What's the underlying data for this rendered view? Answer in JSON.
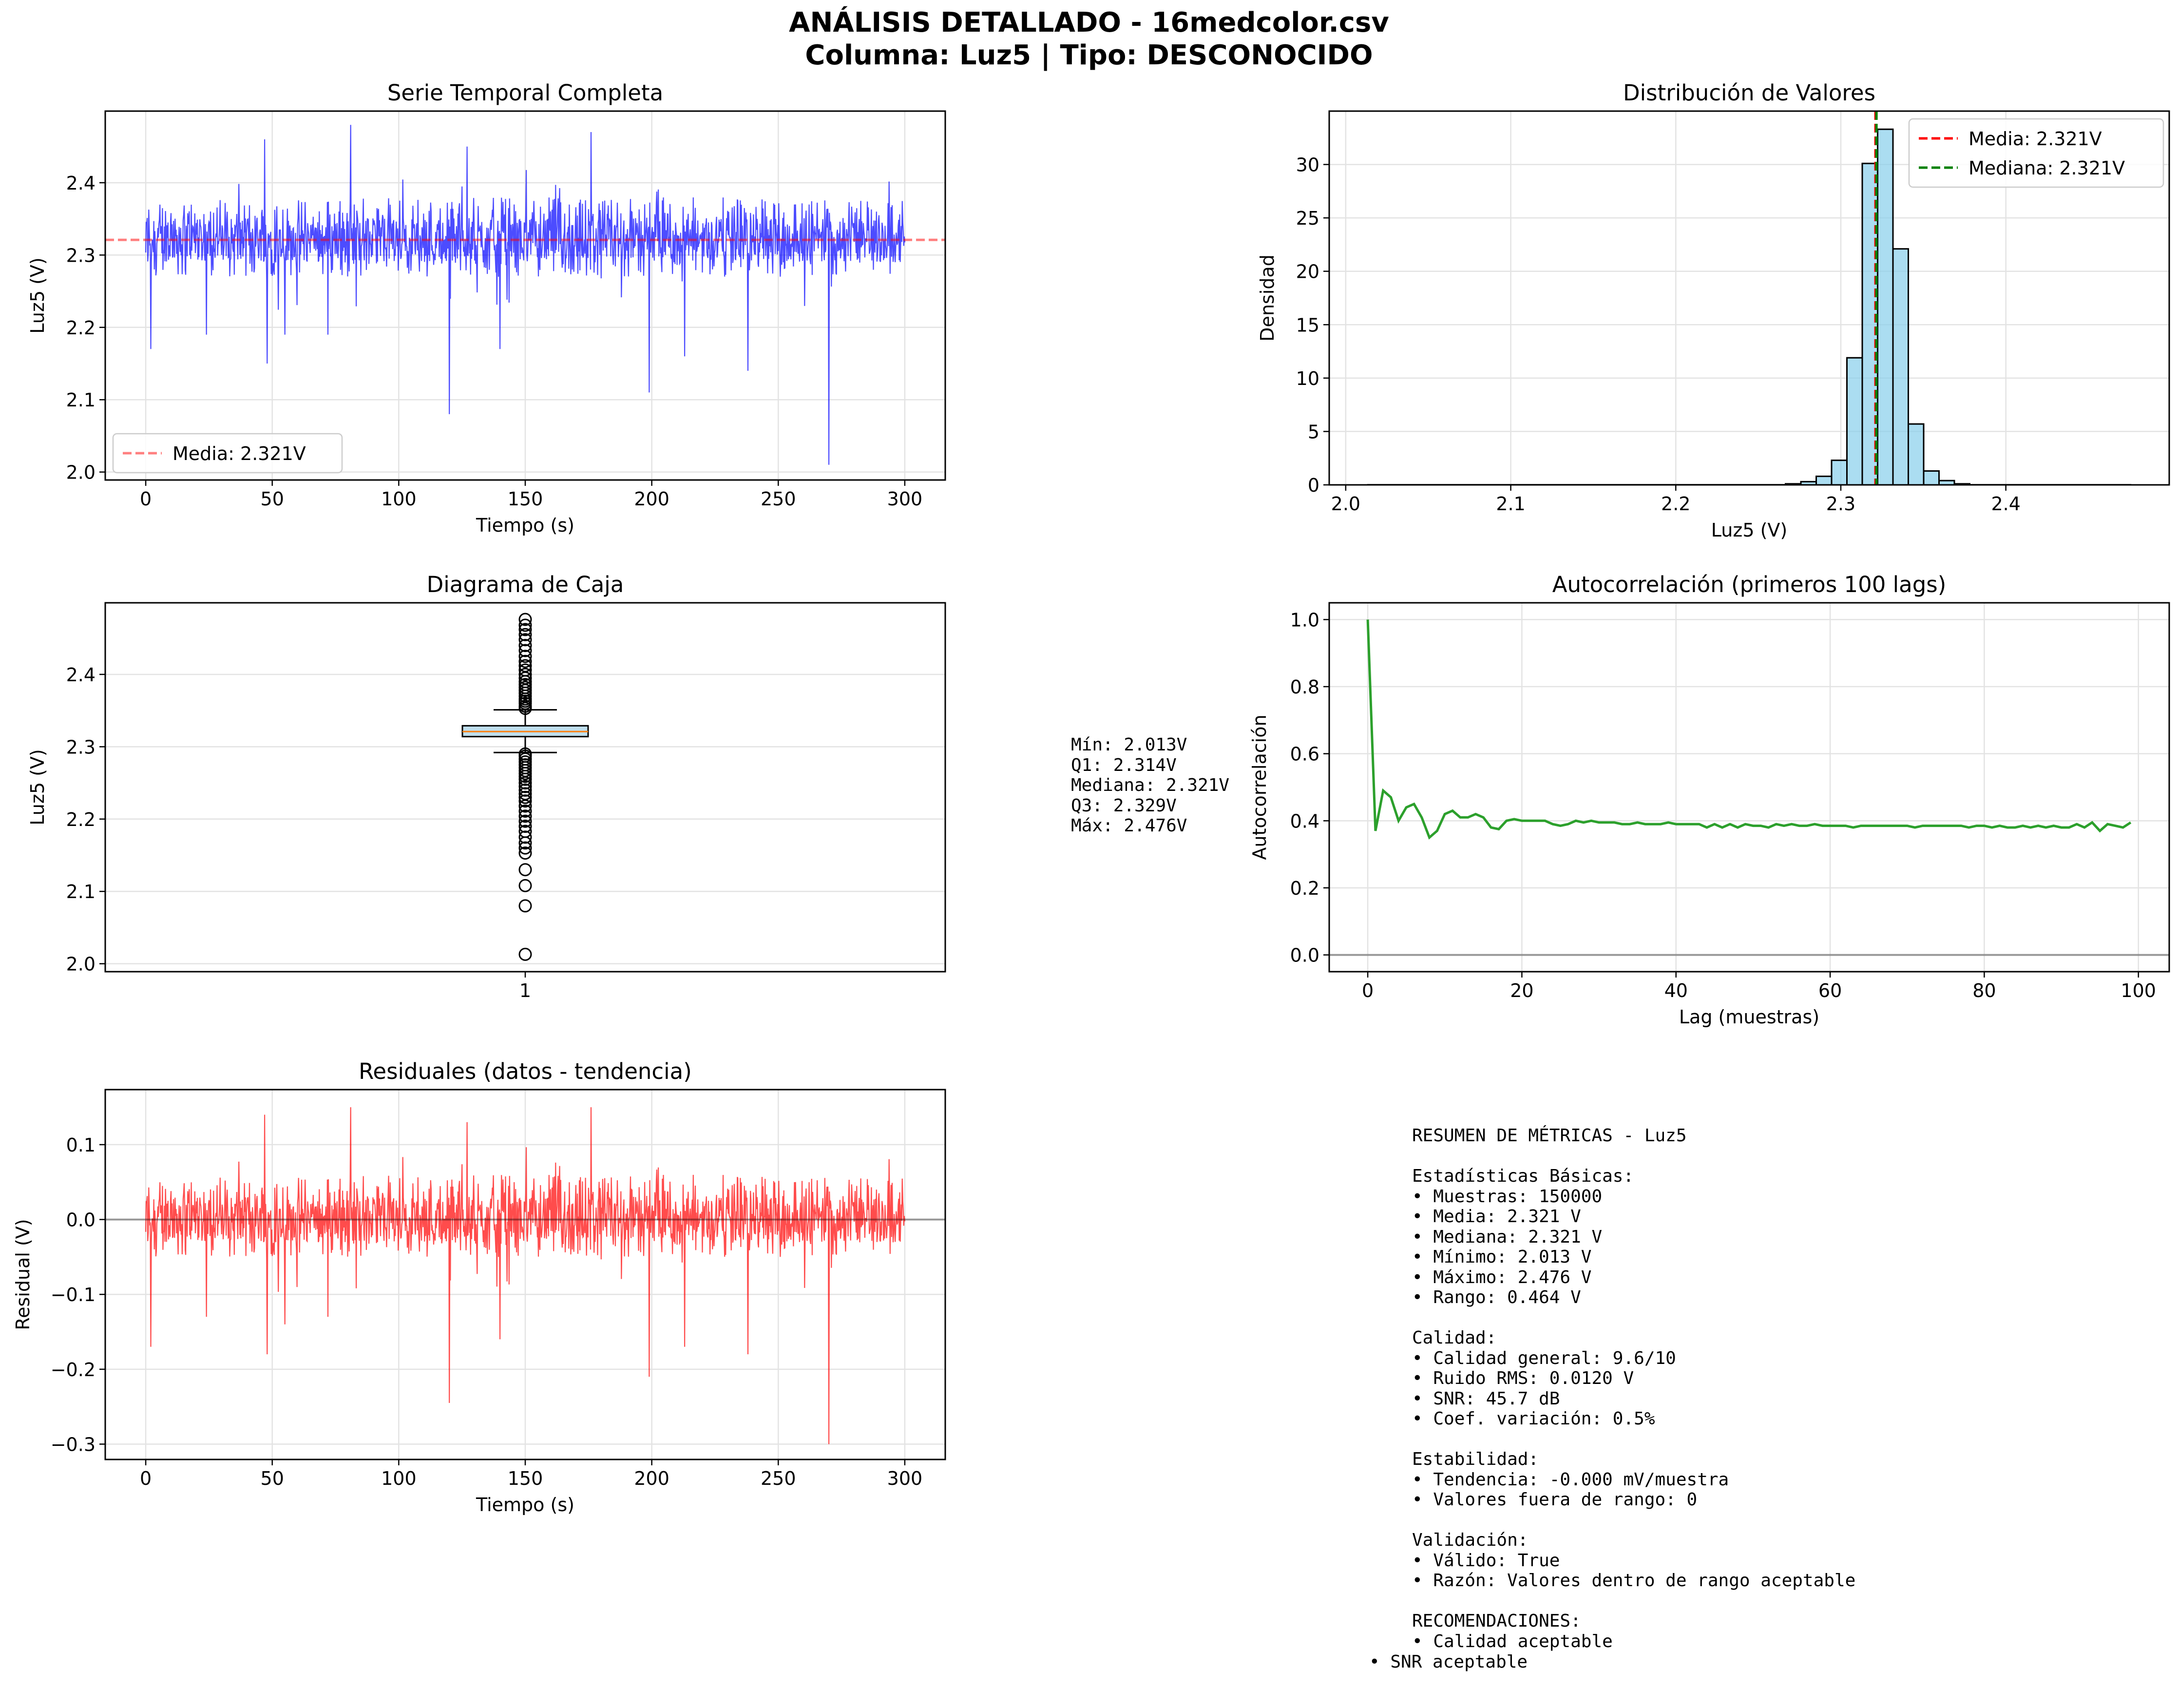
{
  "figure": {
    "title_line1": "ANÁLISIS DETALLADO - 16medcolor.csv",
    "title_line2": "Columna: Luz5 | Tipo: DESCONOCIDO"
  },
  "box_stats_text": [
    "Mín: 2.013V",
    "Q1: 2.314V",
    "Mediana: 2.321V",
    "Q3: 2.329V",
    "Máx: 2.476V"
  ],
  "summary_text": [
    "RESUMEN DE MÉTRICAS - Luz5",
    "",
    "Estadísticas Básicas:",
    "• Muestras: 150000",
    "• Media: 2.321 V",
    "• Mediana: 2.321 V",
    "• Mínimo: 2.013 V",
    "• Máximo: 2.476 V",
    "• Rango: 0.464 V",
    "",
    "Calidad:",
    "• Calidad general: 9.6/10",
    "• Ruido RMS: 0.0120 V",
    "• SNR: 45.7 dB",
    "• Coef. variación: 0.5%",
    "",
    "Estabilidad:",
    "• Tendencia: -0.000 mV/muestra",
    "• Valores fuera de rango: 0",
    "",
    "Validación:",
    "• Válido: True",
    "• Razón: Valores dentro de rango aceptable",
    "",
    "RECOMENDACIONES:",
    "• Calidad aceptable"
  ],
  "summary_last_line": "• SNR aceptable",
  "chart_data": [
    {
      "type": "line",
      "title": "Serie Temporal Completa",
      "xlabel": "Tiempo (s)",
      "ylabel": "Luz5 (V)",
      "xlim": [
        -16,
        316
      ],
      "ylim": [
        1.989,
        2.499
      ],
      "xticks": [
        0,
        50,
        100,
        150,
        200,
        250,
        300
      ],
      "yticks": [
        2.0,
        2.1,
        2.2,
        2.3,
        2.4
      ],
      "ytick_labels": [
        "2.0",
        "2.1",
        "2.2",
        "2.3",
        "2.4"
      ],
      "grid": true,
      "legend": "lower-left",
      "series": [
        {
          "name": "Luz5",
          "color": "#0000ff",
          "mean": 2.321,
          "noise_band": [
            2.27,
            2.38
          ]
        }
      ],
      "spikes": [
        [
          2,
          2.17
        ],
        [
          24,
          2.19
        ],
        [
          47,
          2.46
        ],
        [
          48,
          2.15
        ],
        [
          55,
          2.19
        ],
        [
          72,
          2.19
        ],
        [
          81,
          2.48
        ],
        [
          120,
          2.08
        ],
        [
          127,
          2.45
        ],
        [
          140,
          2.17
        ],
        [
          176,
          2.47
        ],
        [
          199,
          2.11
        ],
        [
          213,
          2.16
        ],
        [
          238,
          2.14
        ],
        [
          270,
          2.01
        ]
      ],
      "mean_line": {
        "value": 2.321,
        "label": "Media: 2.321V",
        "color": "#ff0000"
      }
    },
    {
      "type": "bar",
      "title": "Distribución de Valores",
      "xlabel": "Luz5 (V)",
      "ylabel": "Densidad",
      "xlim": [
        1.99,
        2.499
      ],
      "ylim": [
        0,
        35
      ],
      "xticks": [
        2.0,
        2.1,
        2.2,
        2.3,
        2.4
      ],
      "xtick_labels": [
        "2.0",
        "2.1",
        "2.2",
        "2.3",
        "2.4"
      ],
      "yticks": [
        0,
        5,
        10,
        15,
        20,
        25,
        30
      ],
      "grid": true,
      "legend": "top-right",
      "bin_edges": [
        2.2665,
        2.2758,
        2.2851,
        2.2944,
        2.3037,
        2.313,
        2.3223,
        2.3316,
        2.3409,
        2.3502,
        2.3595,
        2.3688,
        2.3781
      ],
      "values": [
        0.1,
        0.3,
        0.8,
        2.3,
        11.9,
        30.1,
        33.3,
        22.1,
        5.7,
        1.3,
        0.4,
        0.1
      ],
      "bar_color": "#87ceeb",
      "mean_line": {
        "value": 2.321,
        "label": "Media: 2.321V",
        "color": "#ff0000"
      },
      "median_line": {
        "value": 2.321,
        "label": "Mediana: 2.321V",
        "color": "#008000"
      }
    },
    {
      "type": "box",
      "title": "Diagrama de Caja",
      "ylabel": "Luz5 (V)",
      "xticks": [
        1
      ],
      "ylim": [
        1.989,
        2.499
      ],
      "yticks": [
        2.0,
        2.1,
        2.2,
        2.3,
        2.4
      ],
      "ytick_labels": [
        "2.0",
        "2.1",
        "2.2",
        "2.3",
        "2.4"
      ],
      "grid": true,
      "min": 2.013,
      "q1": 2.314,
      "median": 2.321,
      "q3": 2.329,
      "max": 2.476,
      "whisker_low": 2.292,
      "whisker_high": 2.351,
      "outliers_high": [
        2.353,
        2.356,
        2.36,
        2.363,
        2.366,
        2.37,
        2.374,
        2.378,
        2.382,
        2.386,
        2.39,
        2.395,
        2.4,
        2.406,
        2.412,
        2.418,
        2.425,
        2.433,
        2.44,
        2.448,
        2.455,
        2.462,
        2.468,
        2.476
      ],
      "outliers_low": [
        2.29,
        2.287,
        2.283,
        2.279,
        2.275,
        2.271,
        2.267,
        2.263,
        2.259,
        2.255,
        2.25,
        2.245,
        2.24,
        2.235,
        2.23,
        2.225,
        2.218,
        2.211,
        2.204,
        2.197,
        2.19,
        2.183,
        2.175,
        2.167,
        2.16,
        2.153,
        2.13,
        2.108,
        2.08,
        2.013
      ]
    },
    {
      "type": "line",
      "title": "Autocorrelación (primeros 100 lags)",
      "xlabel": "Lag (muestras)",
      "ylabel": "Autocorrelación",
      "xlim": [
        -5,
        104
      ],
      "ylim": [
        -0.05,
        1.05
      ],
      "xticks": [
        0,
        20,
        40,
        60,
        80,
        100
      ],
      "yticks": [
        0.0,
        0.2,
        0.4,
        0.6,
        0.8,
        1.0
      ],
      "ytick_labels": [
        "0.0",
        "0.2",
        "0.4",
        "0.6",
        "0.8",
        "1.0"
      ],
      "grid": true,
      "zero_line": 0,
      "series": [
        {
          "color": "#2ca02c",
          "x": [
            0,
            1,
            2,
            3,
            4,
            5,
            6,
            7,
            8,
            9,
            10,
            11,
            12,
            13,
            14,
            15,
            16,
            17,
            18,
            19,
            20,
            21,
            22,
            23,
            24,
            25,
            26,
            27,
            28,
            29,
            30,
            31,
            32,
            33,
            34,
            35,
            36,
            37,
            38,
            39,
            40,
            41,
            42,
            43,
            44,
            45,
            46,
            47,
            48,
            49,
            50,
            51,
            52,
            53,
            54,
            55,
            56,
            57,
            58,
            59,
            60,
            61,
            62,
            63,
            64,
            65,
            66,
            67,
            68,
            69,
            70,
            71,
            72,
            73,
            74,
            75,
            76,
            77,
            78,
            79,
            80,
            81,
            82,
            83,
            84,
            85,
            86,
            87,
            88,
            89,
            90,
            91,
            92,
            93,
            94,
            95,
            96,
            97,
            98,
            99
          ],
          "values": [
            1.0,
            0.37,
            0.49,
            0.47,
            0.4,
            0.44,
            0.45,
            0.41,
            0.35,
            0.37,
            0.42,
            0.43,
            0.41,
            0.41,
            0.42,
            0.41,
            0.38,
            0.375,
            0.4,
            0.405,
            0.4,
            0.4,
            0.4,
            0.4,
            0.39,
            0.385,
            0.39,
            0.4,
            0.395,
            0.4,
            0.395,
            0.395,
            0.395,
            0.39,
            0.39,
            0.395,
            0.39,
            0.39,
            0.39,
            0.395,
            0.39,
            0.39,
            0.39,
            0.39,
            0.38,
            0.39,
            0.38,
            0.39,
            0.38,
            0.39,
            0.385,
            0.385,
            0.38,
            0.39,
            0.385,
            0.39,
            0.385,
            0.385,
            0.39,
            0.385,
            0.385,
            0.385,
            0.385,
            0.38,
            0.385,
            0.385,
            0.385,
            0.385,
            0.385,
            0.385,
            0.385,
            0.38,
            0.385,
            0.385,
            0.385,
            0.385,
            0.385,
            0.385,
            0.38,
            0.385,
            0.385,
            0.38,
            0.385,
            0.38,
            0.38,
            0.385,
            0.38,
            0.385,
            0.38,
            0.385,
            0.38,
            0.38,
            0.39,
            0.38,
            0.395,
            0.37,
            0.39,
            0.385,
            0.38,
            0.395
          ]
        }
      ]
    },
    {
      "type": "line",
      "title": "Residuales (datos - tendencia)",
      "xlabel": "Tiempo (s)",
      "ylabel": "Residual (V)",
      "xlim": [
        -16,
        316
      ],
      "ylim": [
        -0.3205,
        0.1735
      ],
      "xticks": [
        0,
        50,
        100,
        150,
        200,
        250,
        300
      ],
      "yticks": [
        -0.3,
        -0.2,
        -0.1,
        0.0,
        0.1
      ],
      "ytick_labels": [
        "−0.3",
        "−0.2",
        "−0.1",
        "0.0",
        "0.1"
      ],
      "grid": true,
      "zero_line": 0,
      "series": [
        {
          "name": "Residual",
          "color": "#ff0000",
          "noise_band": [
            -0.05,
            0.06
          ]
        }
      ],
      "spikes": [
        [
          2,
          -0.17
        ],
        [
          24,
          -0.13
        ],
        [
          47,
          0.14
        ],
        [
          48,
          -0.18
        ],
        [
          55,
          -0.14
        ],
        [
          72,
          -0.13
        ],
        [
          81,
          0.15
        ],
        [
          120,
          -0.245
        ],
        [
          127,
          0.13
        ],
        [
          140,
          -0.16
        ],
        [
          176,
          0.15
        ],
        [
          199,
          -0.21
        ],
        [
          213,
          -0.17
        ],
        [
          238,
          -0.18
        ],
        [
          270,
          -0.3
        ]
      ]
    }
  ]
}
